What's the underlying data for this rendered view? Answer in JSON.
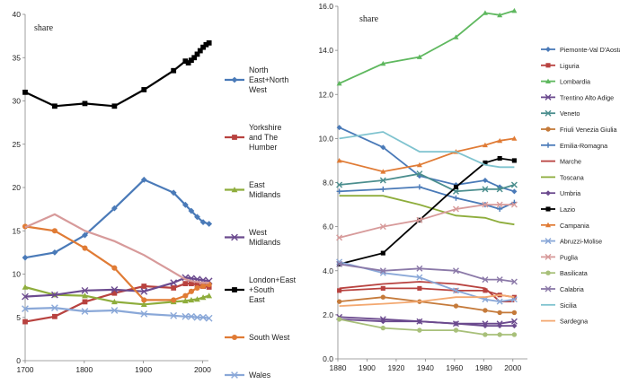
{
  "chart_data": [
    {
      "type": "line",
      "ylabel": "share",
      "xlim": [
        1700,
        2010
      ],
      "ylim": [
        0,
        40
      ],
      "xticks": [
        1700,
        1800,
        1900,
        2000
      ],
      "yticks": [
        0,
        5,
        10,
        15,
        20,
        25,
        30,
        35,
        40
      ],
      "grid": false,
      "legend_position": "right",
      "series": [
        {
          "name": "North East+North West",
          "color": "#4a7ab8",
          "marker": "diamond",
          "points": [
            [
              1700,
              11.9
            ],
            [
              1750,
              12.5
            ],
            [
              1801,
              14.5
            ],
            [
              1851,
              17.6
            ],
            [
              1901,
              20.9
            ],
            [
              1951,
              19.4
            ],
            [
              1971,
              18
            ],
            [
              1981,
              17.3
            ],
            [
              1991,
              16.6
            ],
            [
              2001,
              16.0
            ],
            [
              2011,
              15.8
            ]
          ]
        },
        {
          "name": "Yorkshire and The Humber",
          "color": "#b8423f",
          "marker": "square",
          "points": [
            [
              1700,
              4.5
            ],
            [
              1750,
              5.1
            ],
            [
              1801,
              6.8
            ],
            [
              1851,
              7.8
            ],
            [
              1901,
              8.6
            ],
            [
              1951,
              8.4
            ],
            [
              1971,
              8.9
            ],
            [
              1981,
              8.9
            ],
            [
              1991,
              8.8
            ],
            [
              2001,
              8.6
            ],
            [
              2011,
              8.5
            ]
          ]
        },
        {
          "name": "East Midlands",
          "color": "#8ead3c",
          "marker": "triangle",
          "points": [
            [
              1700,
              8.5
            ],
            [
              1750,
              7.6
            ],
            [
              1801,
              7.5
            ],
            [
              1851,
              6.8
            ],
            [
              1901,
              6.5
            ],
            [
              1951,
              6.8
            ],
            [
              1971,
              6.9
            ],
            [
              1981,
              7.0
            ],
            [
              1991,
              7.1
            ],
            [
              2001,
              7.3
            ],
            [
              2011,
              7.5
            ]
          ]
        },
        {
          "name": "West Midlands",
          "color": "#6b4a8e",
          "marker": "x",
          "points": [
            [
              1700,
              7.4
            ],
            [
              1750,
              7.6
            ],
            [
              1801,
              8.1
            ],
            [
              1851,
              8.2
            ],
            [
              1901,
              8.0
            ],
            [
              1951,
              9.0
            ],
            [
              1971,
              9.6
            ],
            [
              1981,
              9.5
            ],
            [
              1991,
              9.4
            ],
            [
              2001,
              9.3
            ],
            [
              2011,
              9.2
            ]
          ]
        },
        {
          "name": "London+East +South East",
          "color": "#000000",
          "marker": "square",
          "points": [
            [
              1700,
              31.0
            ],
            [
              1750,
              29.4
            ],
            [
              1801,
              29.7
            ],
            [
              1851,
              29.4
            ],
            [
              1901,
              31.3
            ],
            [
              1951,
              33.5
            ],
            [
              1971,
              34.6
            ],
            [
              1976,
              34.4
            ],
            [
              1981,
              34.7
            ],
            [
              1986,
              35.0
            ],
            [
              1991,
              35.4
            ],
            [
              1996,
              35.8
            ],
            [
              2001,
              36.2
            ],
            [
              2006,
              36.5
            ],
            [
              2011,
              36.7
            ]
          ]
        },
        {
          "name": "South West",
          "color": "#e07b35",
          "marker": "circle",
          "points": [
            [
              1700,
              15.5
            ],
            [
              1750,
              15.0
            ],
            [
              1801,
              13.0
            ],
            [
              1851,
              10.7
            ],
            [
              1901,
              7.0
            ],
            [
              1951,
              7.0
            ],
            [
              1971,
              7.5
            ],
            [
              1981,
              8.0
            ],
            [
              1991,
              8.4
            ],
            [
              2001,
              8.6
            ],
            [
              2011,
              8.8
            ]
          ]
        },
        {
          "name": "Wales",
          "color": "#8aa8d8",
          "marker": "x",
          "points": [
            [
              1700,
              6.0
            ],
            [
              1750,
              6.1
            ],
            [
              1801,
              5.7
            ],
            [
              1851,
              5.8
            ],
            [
              1901,
              5.4
            ],
            [
              1951,
              5.2
            ],
            [
              1971,
              5.1
            ],
            [
              1981,
              5.1
            ],
            [
              1991,
              5.0
            ],
            [
              2001,
              5.0
            ],
            [
              2011,
              4.9
            ]
          ]
        },
        {
          "name": "",
          "color": "#d79a9a",
          "marker": "none",
          "points": [
            [
              1700,
              15.4
            ],
            [
              1750,
              16.9
            ],
            [
              1801,
              15.0
            ],
            [
              1851,
              13.8
            ],
            [
              1901,
              12.2
            ],
            [
              1951,
              10.2
            ],
            [
              1971,
              9.4
            ],
            [
              1981,
              9.2
            ],
            [
              1991,
              9.1
            ],
            [
              2001,
              9.0
            ],
            [
              2011,
              9.0
            ]
          ]
        }
      ]
    },
    {
      "type": "line",
      "ylabel": "share",
      "xlim": [
        1880,
        2010
      ],
      "ylim": [
        0,
        16
      ],
      "xticks": [
        1880,
        1900,
        1920,
        1940,
        1960,
        1980,
        2000
      ],
      "yticks": [
        "0.0",
        "2.0",
        "4.0",
        "6.0",
        "8.0",
        "10.0",
        "12.0",
        "14.0",
        "16.0"
      ],
      "grid": false,
      "legend_position": "right",
      "series": [
        {
          "name": "Piemonte-Val D'Aosta",
          "color": "#4a7ab8",
          "marker": "diamond",
          "points": [
            [
              1881,
              10.5
            ],
            [
              1911,
              9.6
            ],
            [
              1936,
              8.3
            ],
            [
              1961,
              7.9
            ],
            [
              1981,
              8.1
            ],
            [
              1991,
              7.8
            ],
            [
              2001,
              7.6
            ]
          ]
        },
        {
          "name": "Liguria",
          "color": "#b8423f",
          "marker": "square",
          "points": [
            [
              1881,
              3.1
            ],
            [
              1911,
              3.2
            ],
            [
              1936,
              3.2
            ],
            [
              1961,
              3.1
            ],
            [
              1981,
              3.1
            ],
            [
              1991,
              2.9
            ],
            [
              2001,
              2.8
            ]
          ]
        },
        {
          "name": "Lombardia",
          "color": "#5fb85f",
          "marker": "triangle",
          "points": [
            [
              1881,
              12.5
            ],
            [
              1911,
              13.4
            ],
            [
              1936,
              13.7
            ],
            [
              1961,
              14.6
            ],
            [
              1981,
              15.7
            ],
            [
              1991,
              15.6
            ],
            [
              2001,
              15.8
            ]
          ]
        },
        {
          "name": "Trentino Alto Adige",
          "color": "#6b4a8e",
          "marker": "x",
          "points": [
            [
              1881,
              1.9
            ],
            [
              1911,
              1.8
            ],
            [
              1936,
              1.7
            ],
            [
              1961,
              1.6
            ],
            [
              1981,
              1.6
            ],
            [
              1991,
              1.6
            ],
            [
              2001,
              1.7
            ]
          ]
        },
        {
          "name": "Veneto",
          "color": "#4b8e8e",
          "marker": "x",
          "points": [
            [
              1881,
              7.9
            ],
            [
              1911,
              8.1
            ],
            [
              1936,
              8.4
            ],
            [
              1961,
              7.6
            ],
            [
              1981,
              7.7
            ],
            [
              1991,
              7.7
            ],
            [
              2001,
              7.9
            ]
          ]
        },
        {
          "name": "Friuli Venezia Giulia",
          "color": "#c57a3a",
          "marker": "circle",
          "points": [
            [
              1881,
              2.6
            ],
            [
              1911,
              2.8
            ],
            [
              1936,
              2.6
            ],
            [
              1961,
              2.4
            ],
            [
              1981,
              2.2
            ],
            [
              1991,
              2.1
            ],
            [
              2001,
              2.1
            ]
          ]
        },
        {
          "name": "Emilia-Romagna",
          "color": "#4a7ab8",
          "marker": "plus",
          "points": [
            [
              1881,
              7.6
            ],
            [
              1911,
              7.7
            ],
            [
              1936,
              7.8
            ],
            [
              1961,
              7.3
            ],
            [
              1981,
              7.0
            ],
            [
              1991,
              6.8
            ],
            [
              2001,
              7.1
            ]
          ]
        },
        {
          "name": "Marche",
          "color": "#b8423f",
          "marker": "none",
          "points": [
            [
              1881,
              3.2
            ],
            [
              1911,
              3.4
            ],
            [
              1936,
              3.5
            ],
            [
              1961,
              3.4
            ],
            [
              1981,
              3.2
            ],
            [
              1991,
              2.6
            ],
            [
              2001,
              2.6
            ]
          ]
        },
        {
          "name": "Toscana",
          "color": "#8ead3c",
          "marker": "none",
          "points": [
            [
              1881,
              7.4
            ],
            [
              1911,
              7.4
            ],
            [
              1936,
              7.0
            ],
            [
              1961,
              6.5
            ],
            [
              1981,
              6.4
            ],
            [
              1991,
              6.2
            ],
            [
              2001,
              6.1
            ]
          ]
        },
        {
          "name": "Umbria",
          "color": "#6b4a8e",
          "marker": "diamond",
          "points": [
            [
              1881,
              1.8
            ],
            [
              1911,
              1.7
            ],
            [
              1936,
              1.7
            ],
            [
              1961,
              1.6
            ],
            [
              1981,
              1.5
            ],
            [
              1991,
              1.5
            ],
            [
              2001,
              1.5
            ]
          ]
        },
        {
          "name": "Lazio",
          "color": "#000000",
          "marker": "square",
          "points": [
            [
              1881,
              4.3
            ],
            [
              1911,
              4.8
            ],
            [
              1936,
              6.3
            ],
            [
              1961,
              7.8
            ],
            [
              1981,
              8.9
            ],
            [
              1991,
              9.1
            ],
            [
              2001,
              9.0
            ]
          ]
        },
        {
          "name": "Campania",
          "color": "#e07b35",
          "marker": "triangle",
          "points": [
            [
              1881,
              9.0
            ],
            [
              1911,
              8.5
            ],
            [
              1936,
              8.8
            ],
            [
              1961,
              9.4
            ],
            [
              1981,
              9.7
            ],
            [
              1991,
              9.9
            ],
            [
              2001,
              10.0
            ]
          ]
        },
        {
          "name": "Abruzzi-Molise",
          "color": "#8aa8d8",
          "marker": "x",
          "points": [
            [
              1881,
              4.4
            ],
            [
              1911,
              3.9
            ],
            [
              1936,
              3.7
            ],
            [
              1961,
              3.1
            ],
            [
              1981,
              2.7
            ],
            [
              1991,
              2.6
            ],
            [
              2001,
              2.7
            ]
          ]
        },
        {
          "name": "Puglia",
          "color": "#d79a9a",
          "marker": "x",
          "points": [
            [
              1881,
              5.5
            ],
            [
              1911,
              6.0
            ],
            [
              1936,
              6.3
            ],
            [
              1961,
              6.8
            ],
            [
              1981,
              7.0
            ],
            [
              1991,
              7.0
            ],
            [
              2001,
              7.0
            ]
          ]
        },
        {
          "name": "Basilicata",
          "color": "#a8c07a",
          "marker": "circle",
          "points": [
            [
              1881,
              1.8
            ],
            [
              1911,
              1.4
            ],
            [
              1936,
              1.3
            ],
            [
              1961,
              1.3
            ],
            [
              1981,
              1.1
            ],
            [
              1991,
              1.1
            ],
            [
              2001,
              1.1
            ]
          ]
        },
        {
          "name": "Calabria",
          "color": "#8b79a8",
          "marker": "x",
          "points": [
            [
              1881,
              4.3
            ],
            [
              1911,
              4.0
            ],
            [
              1936,
              4.1
            ],
            [
              1961,
              4.0
            ],
            [
              1981,
              3.6
            ],
            [
              1991,
              3.6
            ],
            [
              2001,
              3.5
            ]
          ]
        },
        {
          "name": "Sicilia",
          "color": "#7fc3cf",
          "marker": "none",
          "points": [
            [
              1881,
              10.0
            ],
            [
              1911,
              10.3
            ],
            [
              1936,
              9.4
            ],
            [
              1961,
              9.4
            ],
            [
              1981,
              8.8
            ],
            [
              1991,
              8.7
            ],
            [
              2001,
              8.7
            ]
          ]
        },
        {
          "name": "Sardegna",
          "color": "#f3a870",
          "marker": "none",
          "points": [
            [
              1881,
              2.4
            ],
            [
              1911,
              2.5
            ],
            [
              1936,
              2.6
            ],
            [
              1961,
              2.8
            ],
            [
              1981,
              2.8
            ],
            [
              1991,
              2.9
            ],
            [
              2001,
              2.8
            ]
          ]
        }
      ]
    }
  ]
}
